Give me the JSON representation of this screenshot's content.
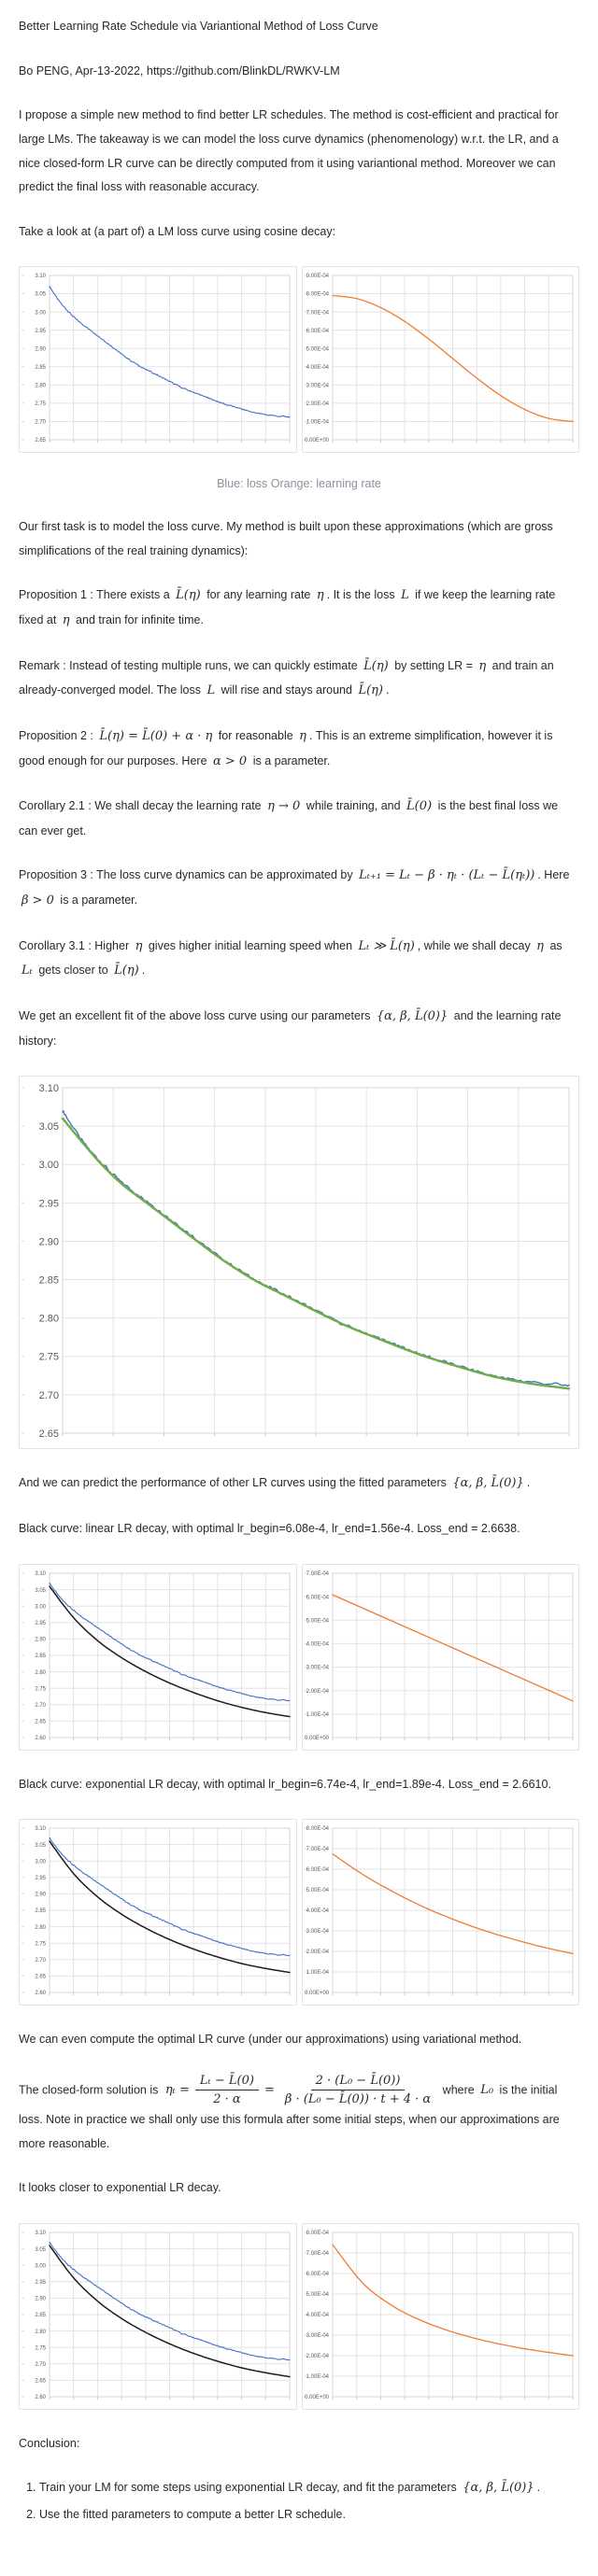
{
  "colors": {
    "loss_blue": "#4472c4",
    "lr_orange": "#ed7d31",
    "fit_green": "#70ad47",
    "pred_black": "#1c1c1c",
    "grid": "#e3e3e3",
    "axis_label": "#595959"
  },
  "document": {
    "title": "Better Learning Rate Schedule via Variantional Method of Loss Curve",
    "byline": "Bo PENG, Apr-13-2022, https://github.com/BlinkDL/RWKV-LM",
    "paragraphs": {
      "intro": "I propose a simple new method to find better LR schedules. The method is cost-efficient and practical for large LMs. The takeaway is we can model the loss curve dynamics (phenomenology) w.r.t. the LR, and a nice closed-form LR curve can be directly computed from it using variantional method. Moreover we can predict the final loss with reasonable accuracy.",
      "take_a_look": "Take a look at (a part of) a LM loss curve using cosine decay:",
      "chart1_caption": "Blue: loss Orange: learning rate",
      "first_task": "Our first task is to model the loss curve. My method is built upon these approximations (which are gross simplifications of the real training dynamics):",
      "prop1": [
        {
          "t": "Proposition 1 : There exists a "
        },
        {
          "m": "L̄(η)"
        },
        {
          "t": " for any learning rate "
        },
        {
          "m": "η"
        },
        {
          "t": ". It is the loss "
        },
        {
          "m": "L"
        },
        {
          "t": " if we keep the learning rate fixed at "
        },
        {
          "m": "η"
        },
        {
          "t": " and train for infinite time."
        }
      ],
      "remark": [
        {
          "t": "Remark : Instead of testing multiple runs, we can quickly estimate "
        },
        {
          "m": "L̄(η)"
        },
        {
          "t": " by setting LR = "
        },
        {
          "m": "η"
        },
        {
          "t": " and train an already-converged model. The loss "
        },
        {
          "m": "L"
        },
        {
          "t": " will rise and stays around "
        },
        {
          "m": "L̄(η)"
        },
        {
          "t": "."
        }
      ],
      "prop2": [
        {
          "t": "Proposition 2 : "
        },
        {
          "m": "L̄(η) = L̄(0) + α · η"
        },
        {
          "t": " for reasonable "
        },
        {
          "m": "η"
        },
        {
          "t": ". This is an extreme simplification, however it is good enough for our purposes. Here "
        },
        {
          "m": "α > 0"
        },
        {
          "t": " is a parameter."
        }
      ],
      "cor21": [
        {
          "t": "Corollary 2.1 : We shall decay the learning rate "
        },
        {
          "m": "η → 0"
        },
        {
          "t": " while training, and "
        },
        {
          "m": "L̄(0)"
        },
        {
          "t": " is the best final loss we can ever get."
        }
      ],
      "prop3": [
        {
          "t": "Proposition 3 : The loss curve dynamics can be approximated by "
        },
        {
          "m": "Lₜ₊₁ = Lₜ − β · ηₜ · (Lₜ − L̄(ηₜ))"
        },
        {
          "t": ". Here "
        },
        {
          "m": "β > 0"
        },
        {
          "t": " is a parameter."
        }
      ],
      "cor31": [
        {
          "t": "Corollary 3.1 : Higher "
        },
        {
          "m": "η"
        },
        {
          "t": " gives higher initial learning speed when "
        },
        {
          "m": "Lₜ ≫ L̄(η)"
        },
        {
          "t": ", while we shall decay "
        },
        {
          "m": "η"
        },
        {
          "t": " as "
        },
        {
          "m": "Lₜ"
        },
        {
          "t": " gets closer to "
        },
        {
          "m": "L̄(η)"
        },
        {
          "t": "."
        }
      ],
      "fit": [
        {
          "t": "We get an excellent fit of the above loss curve using our parameters "
        },
        {
          "m": "{α, β, L̄(0)}"
        },
        {
          "t": " and the learning rate history:"
        }
      ],
      "predict": [
        {
          "t": "And we can predict the performance of other LR curves using the fitted parameters "
        },
        {
          "m": "{α, β, L̄(0)}"
        },
        {
          "t": "."
        }
      ],
      "linear_result": "Black curve: linear LR decay, with optimal lr_begin=6.08e-4, lr_end=1.56e-4. Loss_end = 2.6638.",
      "exp_result": "Black curve: exponential LR decay, with optimal lr_begin=6.74e-4, lr_end=1.89e-4. Loss_end = 2.6610.",
      "variational": "We can even compute the optimal LR curve (under our approximations) using variational method.",
      "closer": "It looks closer to exponential LR decay.",
      "conclusion_heading": "Conclusion:",
      "conclusion_items": {
        "item1": [
          {
            "t": "Train your LM for some steps using exponential LR decay, and fit the parameters "
          },
          {
            "m": "{α, β, L̄(0)}"
          },
          {
            "t": "."
          }
        ],
        "item2": [
          {
            "t": "Use the fitted parameters to compute a better LR schedule."
          }
        ]
      }
    },
    "closed_form": {
      "before": "The closed-form solution is",
      "lhs": "ηₜ =",
      "frac1_num": "Lₜ − L̄(0)",
      "frac1_den": "2 · α",
      "equals": "=",
      "frac2_num": "2 · (L₀ − L̄(0))",
      "frac2_den": "β · (L₀ − L̄(0)) · t + 4 · α",
      "where": "where",
      "l0": "L₀",
      "after": "is the initial loss. Note in practice we shall only use this formula after some initial steps, when our approximations are more reasonable."
    }
  },
  "chart_data": [
    {
      "id": "loss-cosine",
      "type": "line",
      "description": "LM loss curve, cosine LR decay",
      "ylim": [
        2.65,
        3.1
      ],
      "y_tick_step": 0.05,
      "y_format": "fixed2",
      "x_divisions": 10,
      "series": [
        {
          "name": "loss",
          "color": "#4472c4",
          "width": 1.1,
          "noisy": true,
          "noise_amp": 0.003,
          "x": [
            0,
            0.04,
            0.08,
            0.12,
            0.17,
            0.22,
            0.27,
            0.32,
            0.38,
            0.44,
            0.5,
            0.56,
            0.62,
            0.67,
            0.72,
            0.78,
            0.85,
            0.92,
            1.0
          ],
          "y": [
            3.07,
            3.03,
            3.0,
            2.975,
            2.95,
            2.925,
            2.9,
            2.875,
            2.85,
            2.83,
            2.81,
            2.79,
            2.775,
            2.762,
            2.75,
            2.738,
            2.725,
            2.717,
            2.712
          ]
        }
      ]
    },
    {
      "id": "lr-cosine",
      "type": "line",
      "description": "learning rate, cosine decay",
      "ylim": [
        0,
        0.0009
      ],
      "y_tick_step": 0.0001,
      "y_format": "sci",
      "x_divisions": 10,
      "series": [
        {
          "name": "learning rate",
          "color": "#ed7d31",
          "width": 1.3,
          "noisy": false,
          "x": [
            0,
            0.1,
            0.2,
            0.3,
            0.4,
            0.5,
            0.6,
            0.7,
            0.8,
            0.9,
            1.0
          ],
          "y": [
            0.00079,
            0.000773,
            0.000724,
            0.000648,
            0.000552,
            0.000445,
            0.000338,
            0.000242,
            0.000166,
            0.000117,
            0.0001
          ]
        }
      ]
    },
    {
      "id": "loss-fit",
      "type": "line",
      "description": "loss curve (blue) with fitted model (green)",
      "ylim": [
        2.65,
        3.1
      ],
      "y_tick_step": 0.05,
      "y_format": "fixed2",
      "x_divisions": 10,
      "series": [
        {
          "name": "loss",
          "color": "#4472c4",
          "width": 1.4,
          "noisy": true,
          "noise_amp": 0.003,
          "x": [
            0,
            0.04,
            0.08,
            0.12,
            0.17,
            0.22,
            0.27,
            0.32,
            0.38,
            0.44,
            0.5,
            0.56,
            0.62,
            0.67,
            0.72,
            0.78,
            0.85,
            0.92,
            1.0
          ],
          "y": [
            3.07,
            3.03,
            3.0,
            2.975,
            2.95,
            2.925,
            2.9,
            2.875,
            2.85,
            2.83,
            2.81,
            2.79,
            2.775,
            2.762,
            2.75,
            2.738,
            2.725,
            2.717,
            2.712
          ]
        },
        {
          "name": "fit",
          "color": "#70ad47",
          "width": 2.4,
          "noisy": false,
          "x": [
            0,
            0.04,
            0.08,
            0.12,
            0.17,
            0.22,
            0.27,
            0.32,
            0.38,
            0.44,
            0.5,
            0.56,
            0.62,
            0.67,
            0.72,
            0.78,
            0.85,
            0.92,
            1.0
          ],
          "y": [
            3.06,
            3.028,
            2.998,
            2.973,
            2.948,
            2.923,
            2.898,
            2.874,
            2.849,
            2.829,
            2.809,
            2.79,
            2.774,
            2.761,
            2.749,
            2.737,
            2.724,
            2.715,
            2.708
          ]
        }
      ]
    },
    {
      "id": "loss-linear-pred",
      "type": "line",
      "description": "actual loss (blue) vs predicted loss for linear LR decay (black)",
      "ylim": [
        2.6,
        3.1
      ],
      "y_tick_step": 0.05,
      "y_format": "fixed2",
      "x_divisions": 10,
      "series": [
        {
          "name": "loss",
          "color": "#4472c4",
          "width": 1.1,
          "noisy": true,
          "noise_amp": 0.003,
          "x": [
            0,
            0.04,
            0.08,
            0.12,
            0.17,
            0.22,
            0.27,
            0.32,
            0.38,
            0.44,
            0.5,
            0.56,
            0.62,
            0.67,
            0.72,
            0.78,
            0.85,
            0.92,
            1.0
          ],
          "y": [
            3.07,
            3.03,
            3.0,
            2.975,
            2.95,
            2.925,
            2.9,
            2.875,
            2.85,
            2.83,
            2.81,
            2.79,
            2.775,
            2.762,
            2.75,
            2.738,
            2.725,
            2.717,
            2.712
          ]
        },
        {
          "name": "predicted loss, linear LR decay",
          "color": "#1c1c1c",
          "width": 1.5,
          "noisy": false,
          "x": [
            0,
            0.1,
            0.2,
            0.3,
            0.4,
            0.5,
            0.6,
            0.7,
            0.8,
            0.9,
            1.0
          ],
          "y": [
            3.06,
            2.965,
            2.895,
            2.843,
            2.801,
            2.766,
            2.737,
            2.712,
            2.692,
            2.676,
            2.6638
          ]
        }
      ]
    },
    {
      "id": "lr-linear",
      "type": "line",
      "description": "linear LR decay schedule",
      "ylim": [
        0,
        0.0007
      ],
      "y_tick_step": 0.0001,
      "y_format": "sci",
      "x_divisions": 10,
      "series": [
        {
          "name": "learning rate",
          "color": "#ed7d31",
          "width": 1.3,
          "noisy": false,
          "x": [
            0,
            1
          ],
          "y": [
            0.000608,
            0.000156
          ]
        }
      ]
    },
    {
      "id": "loss-exp-pred",
      "type": "line",
      "description": "actual loss (blue) vs predicted loss for exponential LR decay (black)",
      "ylim": [
        2.6,
        3.1
      ],
      "y_tick_step": 0.05,
      "y_format": "fixed2",
      "x_divisions": 10,
      "series": [
        {
          "name": "loss",
          "color": "#4472c4",
          "width": 1.1,
          "noisy": true,
          "noise_amp": 0.003,
          "x": [
            0,
            0.04,
            0.08,
            0.12,
            0.17,
            0.22,
            0.27,
            0.32,
            0.38,
            0.44,
            0.5,
            0.56,
            0.62,
            0.67,
            0.72,
            0.78,
            0.85,
            0.92,
            1.0
          ],
          "y": [
            3.07,
            3.03,
            3.0,
            2.975,
            2.95,
            2.925,
            2.9,
            2.875,
            2.85,
            2.83,
            2.81,
            2.79,
            2.775,
            2.762,
            2.75,
            2.738,
            2.725,
            2.717,
            2.712
          ]
        },
        {
          "name": "predicted loss, exponential LR decay",
          "color": "#1c1c1c",
          "width": 1.5,
          "noisy": false,
          "x": [
            0,
            0.1,
            0.2,
            0.3,
            0.4,
            0.5,
            0.6,
            0.7,
            0.8,
            0.9,
            1.0
          ],
          "y": [
            3.06,
            2.962,
            2.891,
            2.838,
            2.796,
            2.761,
            2.732,
            2.708,
            2.688,
            2.673,
            2.661
          ]
        }
      ]
    },
    {
      "id": "lr-exp",
      "type": "line",
      "description": "exponential LR decay schedule",
      "ylim": [
        0,
        0.0008
      ],
      "y_tick_step": 0.0001,
      "y_format": "sci",
      "x_divisions": 10,
      "series": [
        {
          "name": "learning rate",
          "color": "#ed7d31",
          "width": 1.3,
          "noisy": false,
          "x": [
            0,
            0.125,
            0.25,
            0.375,
            0.5,
            0.625,
            0.75,
            0.875,
            1
          ],
          "y": [
            0.000674,
            0.000575,
            0.000491,
            0.000418,
            0.000357,
            0.000304,
            0.00026,
            0.000221,
            0.000189
          ]
        }
      ]
    },
    {
      "id": "loss-optimal-pred",
      "type": "line",
      "description": "actual loss (blue) vs predicted loss for optimal variational LR curve (black)",
      "ylim": [
        2.6,
        3.1
      ],
      "y_tick_step": 0.05,
      "y_format": "fixed2",
      "x_divisions": 10,
      "series": [
        {
          "name": "loss",
          "color": "#4472c4",
          "width": 1.1,
          "noisy": true,
          "noise_amp": 0.003,
          "x": [
            0,
            0.04,
            0.08,
            0.12,
            0.17,
            0.22,
            0.27,
            0.32,
            0.38,
            0.44,
            0.5,
            0.56,
            0.62,
            0.67,
            0.72,
            0.78,
            0.85,
            0.92,
            1.0
          ],
          "y": [
            3.07,
            3.03,
            3.0,
            2.975,
            2.95,
            2.925,
            2.9,
            2.875,
            2.85,
            2.83,
            2.81,
            2.79,
            2.775,
            2.762,
            2.75,
            2.738,
            2.725,
            2.717,
            2.712
          ]
        },
        {
          "name": "predicted loss, optimal LR curve",
          "color": "#1c1c1c",
          "width": 1.5,
          "noisy": false,
          "x": [
            0,
            0.1,
            0.2,
            0.3,
            0.4,
            0.5,
            0.6,
            0.7,
            0.8,
            0.9,
            1.0
          ],
          "y": [
            3.06,
            2.962,
            2.891,
            2.838,
            2.796,
            2.761,
            2.732,
            2.708,
            2.688,
            2.673,
            2.661
          ]
        }
      ]
    },
    {
      "id": "lr-optimal",
      "type": "line",
      "description": "optimal closed-form LR schedule (hyperbolic decay)",
      "ylim": [
        0,
        0.0008
      ],
      "y_tick_step": 0.0001,
      "y_format": "sci",
      "x_divisions": 10,
      "series": [
        {
          "name": "learning rate",
          "color": "#ed7d31",
          "width": 1.3,
          "noisy": false,
          "x": [
            0,
            0.125,
            0.25,
            0.375,
            0.5,
            0.625,
            0.75,
            0.875,
            1
          ],
          "y": [
            0.00074,
            0.000554,
            0.000442,
            0.000368,
            0.000315,
            0.000275,
            0.000244,
            0.00022,
            0.0002
          ]
        }
      ]
    }
  ]
}
